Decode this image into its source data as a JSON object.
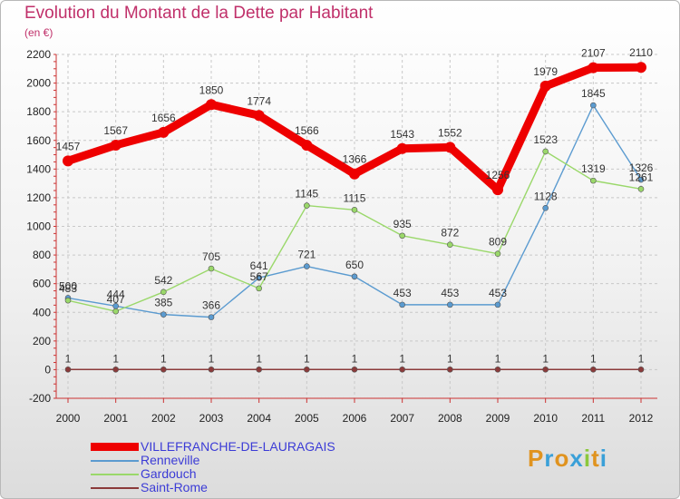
{
  "header": {
    "title": "Evolution du Montant de la Dette par Habitant",
    "subtitle": "(en €)"
  },
  "colors": {
    "title": "#c0306a",
    "legend_text": "#3b3bd6"
  },
  "logo": {
    "text": "Proxiti",
    "colors": [
      "#e0931f",
      "#3aa0d8",
      "#e0931f",
      "#3aa0d8",
      "#8cc83c",
      "#e0931f",
      "#3aa0d8"
    ]
  },
  "chart_data": {
    "type": "line",
    "title": "Evolution du Montant de la Dette par Habitant",
    "subtitle": "(en €)",
    "xlabel": "",
    "ylabel": "",
    "x": [
      "2000",
      "2001",
      "2002",
      "2003",
      "2004",
      "2005",
      "2006",
      "2007",
      "2008",
      "2009",
      "2010",
      "2011",
      "2012"
    ],
    "ylim": [
      -200,
      2200
    ],
    "yticks": [
      -200,
      0,
      200,
      400,
      600,
      800,
      1000,
      1200,
      1400,
      1600,
      1800,
      2000,
      2200
    ],
    "grid": true,
    "legend_position": "bottom-left",
    "series": [
      {
        "name": "VILLEFRANCHE-DE-LAURAGAIS",
        "color": "#ee0000",
        "emphasis": true,
        "values": [
          1457,
          1567,
          1656,
          1850,
          1774,
          1566,
          1366,
          1543,
          1552,
          1256,
          1979,
          2107,
          2110
        ]
      },
      {
        "name": "Renneville",
        "color": "#5b9bd0",
        "emphasis": false,
        "values": [
          500,
          444,
          385,
          366,
          641,
          721,
          650,
          453,
          453,
          453,
          1128,
          1845,
          1326
        ]
      },
      {
        "name": "Gardouch",
        "color": "#9ad86a",
        "emphasis": false,
        "values": [
          483,
          407,
          542,
          705,
          567,
          1145,
          1115,
          935,
          872,
          809,
          1523,
          1319,
          1261
        ]
      },
      {
        "name": "Saint-Rome",
        "color": "#8b3a3a",
        "emphasis": false,
        "values": [
          1,
          1,
          1,
          1,
          1,
          1,
          1,
          1,
          1,
          1,
          1,
          1,
          1
        ]
      }
    ]
  }
}
